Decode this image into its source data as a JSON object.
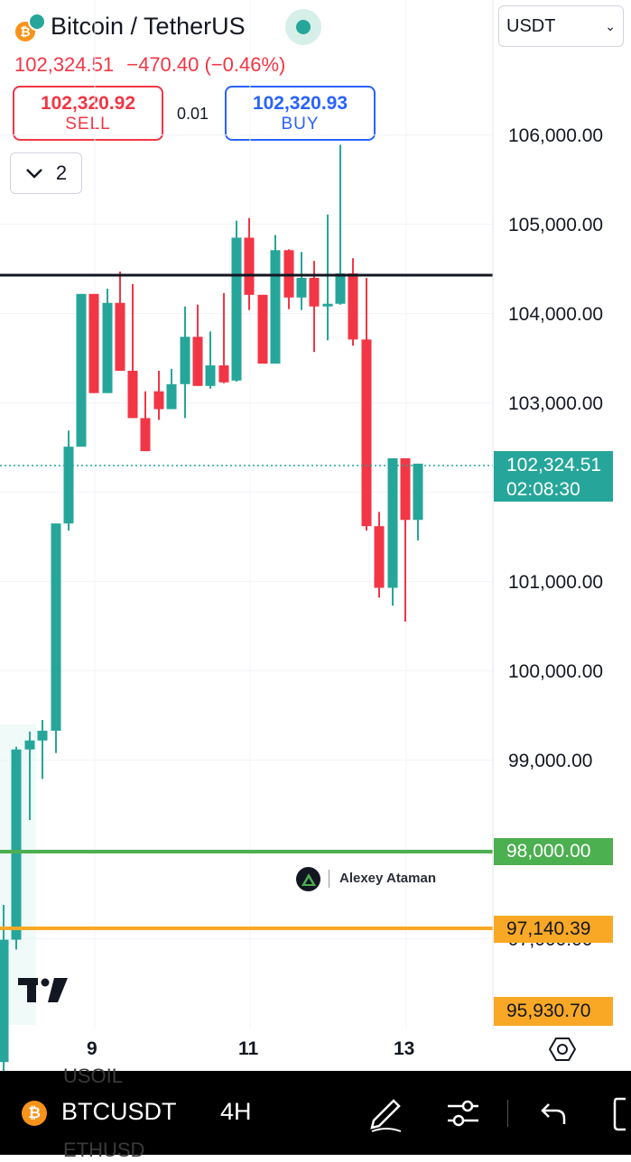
{
  "header": {
    "title": "Bitcoin / TetherUS",
    "coin_icon": "bitcoin-icon",
    "currency_select": "USDT",
    "last_price": "102,324.51",
    "change": "−470.40",
    "change_pct": "(−0.46%)"
  },
  "trade": {
    "sell_price": "102,320.92",
    "sell_label": "SELL",
    "spread": "0.01",
    "buy_price": "102,320.93",
    "buy_label": "BUY"
  },
  "indicator_toggle": {
    "count": "2"
  },
  "chart": {
    "y_ticks": [
      "106,000.00",
      "105,000.00",
      "104,000.00",
      "103,000.00",
      "101,000.00",
      "100,000.00",
      "99,000.00",
      "97,000.00"
    ],
    "x_ticks": [
      "9",
      "11",
      "13"
    ],
    "current_price_tag": "102,324.51",
    "countdown": "02:08:30",
    "level_green": "98,000.00",
    "level_orange": "97,140.39",
    "level_bottom": "95,930.70",
    "watermark_author": "Alexey Ataman",
    "colors": {
      "up": "#26a69a",
      "down": "#f23645",
      "green_line": "#4caf50",
      "orange_line": "#f9a825"
    }
  },
  "bottom_bar": {
    "symbol": "BTCUSDT",
    "interval": "4H",
    "ghost_top": "USOIL",
    "ghost_bottom": "ETHUSD",
    "icons": [
      "draw-icon",
      "settings-sliders-icon",
      "undo-icon",
      "fullscreen-icon"
    ]
  }
}
